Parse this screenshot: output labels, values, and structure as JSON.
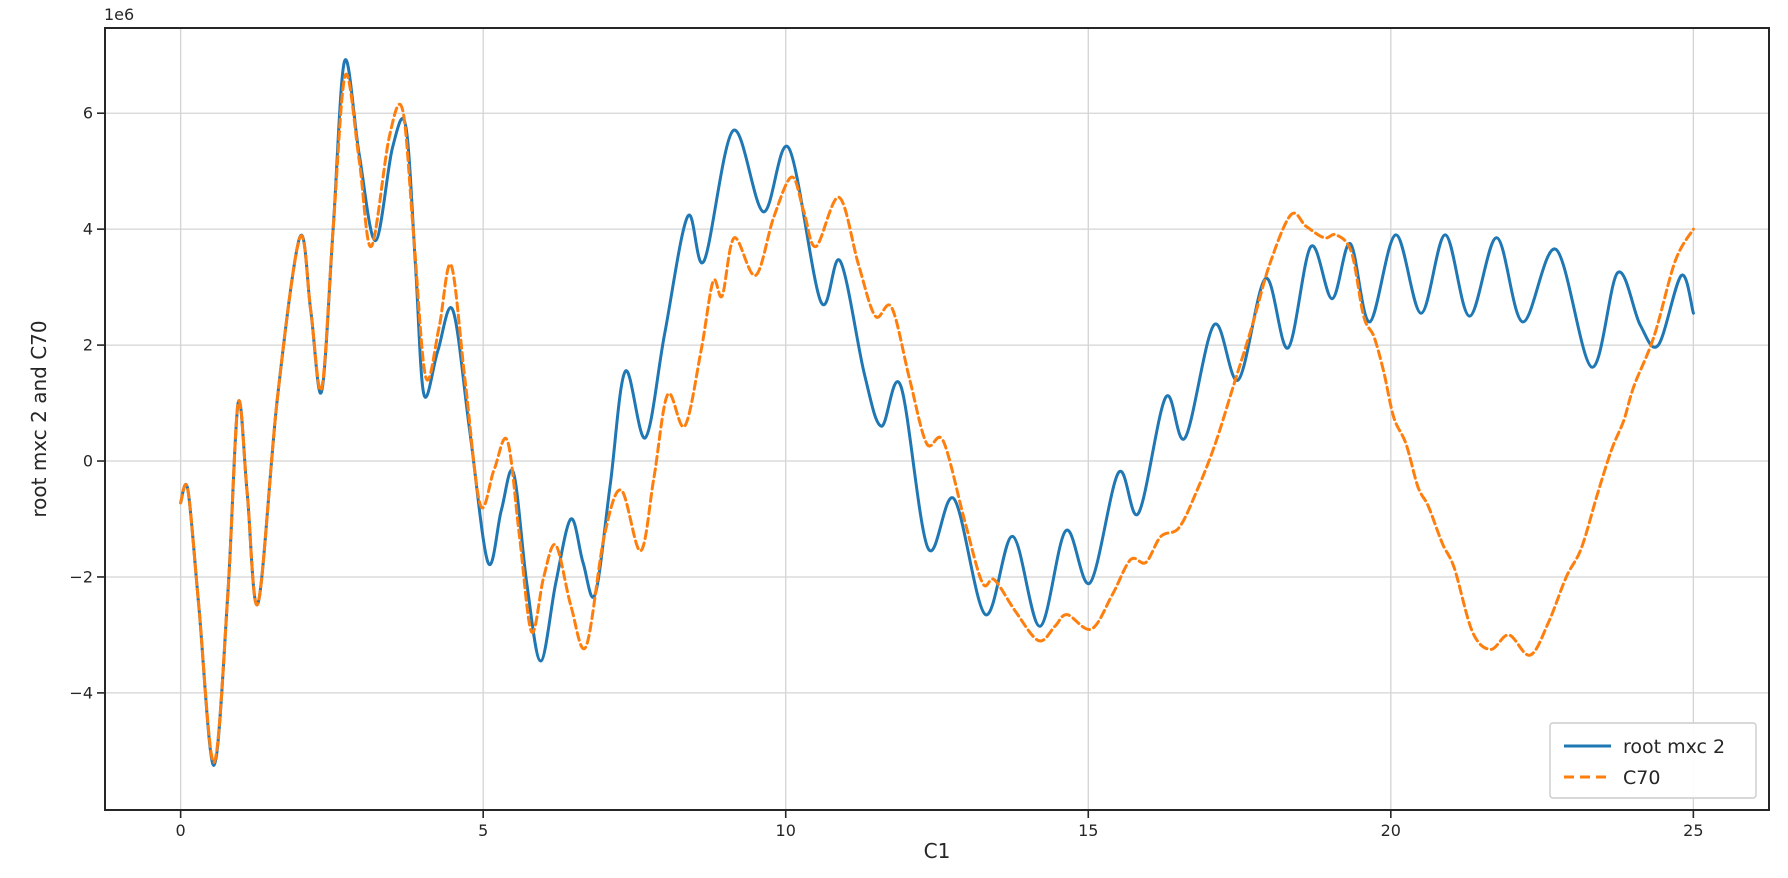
{
  "chart": {
    "offset_text": "1e6",
    "xlabel": "C1",
    "ylabel": "root mxc 2 and C70",
    "background_color": "#ffffff",
    "grid_color": "#d4d4d4",
    "spine_color": "#262626",
    "text_color": "#262626",
    "legend_border_color": "#cccccc"
  },
  "chart_data": {
    "type": "line",
    "title": "",
    "xlabel": "C1",
    "ylabel": "root mxc 2 and C70",
    "y_unit_multiplier": "1e6",
    "xlim": [
      -1.25,
      26.25
    ],
    "ylim_1e6": [
      -6.02,
      7.47
    ],
    "xticks": [
      0,
      5,
      10,
      15,
      20,
      25
    ],
    "xticklabels": [
      "0",
      "5",
      "10",
      "15",
      "20",
      "25"
    ],
    "yticks_1e6": [
      6,
      4,
      2,
      0,
      -2,
      -4
    ],
    "yticklabels": [
      "6",
      "4",
      "2",
      "0",
      "−2",
      "−4"
    ],
    "grid": true,
    "legend_position": "lower right",
    "series": [
      {
        "name": "root mxc 2",
        "color": "#1f77b4",
        "style": "solid",
        "points_1e6": [
          [
            0,
            -0.72
          ],
          [
            0.12,
            -0.5
          ],
          [
            0.3,
            -2.5
          ],
          [
            0.55,
            -5.25
          ],
          [
            0.78,
            -2.3
          ],
          [
            0.95,
            1.0
          ],
          [
            1.1,
            -0.55
          ],
          [
            1.28,
            -2.45
          ],
          [
            1.6,
            1.1
          ],
          [
            1.97,
            3.86
          ],
          [
            2.15,
            2.6
          ],
          [
            2.33,
            1.2
          ],
          [
            2.52,
            4.0
          ],
          [
            2.71,
            6.9
          ],
          [
            2.95,
            5.3
          ],
          [
            3.22,
            3.8
          ],
          [
            3.5,
            5.4
          ],
          [
            3.72,
            5.78
          ],
          [
            3.88,
            3.4
          ],
          [
            4.02,
            1.15
          ],
          [
            4.25,
            1.9
          ],
          [
            4.5,
            2.6
          ],
          [
            4.78,
            0.5
          ],
          [
            5.08,
            -1.75
          ],
          [
            5.3,
            -0.85
          ],
          [
            5.5,
            -0.2
          ],
          [
            5.72,
            -2.1
          ],
          [
            5.95,
            -3.45
          ],
          [
            6.2,
            -2.1
          ],
          [
            6.45,
            -1.0
          ],
          [
            6.65,
            -1.75
          ],
          [
            6.85,
            -2.3
          ],
          [
            7.1,
            -0.4
          ],
          [
            7.35,
            1.55
          ],
          [
            7.68,
            0.4
          ],
          [
            8.0,
            2.2
          ],
          [
            8.38,
            4.22
          ],
          [
            8.65,
            3.45
          ],
          [
            9.13,
            5.7
          ],
          [
            9.63,
            4.3
          ],
          [
            10.05,
            5.4
          ],
          [
            10.58,
            2.75
          ],
          [
            10.9,
            3.45
          ],
          [
            11.3,
            1.5
          ],
          [
            11.58,
            0.6
          ],
          [
            11.9,
            1.3
          ],
          [
            12.35,
            -1.5
          ],
          [
            12.78,
            -0.65
          ],
          [
            13.3,
            -2.65
          ],
          [
            13.75,
            -1.3
          ],
          [
            14.2,
            -2.85
          ],
          [
            14.63,
            -1.2
          ],
          [
            15.03,
            -2.1
          ],
          [
            15.5,
            -0.2
          ],
          [
            15.83,
            -0.9
          ],
          [
            16.28,
            1.1
          ],
          [
            16.6,
            0.4
          ],
          [
            17.08,
            2.35
          ],
          [
            17.48,
            1.4
          ],
          [
            17.93,
            3.15
          ],
          [
            18.3,
            1.95
          ],
          [
            18.68,
            3.7
          ],
          [
            19.03,
            2.8
          ],
          [
            19.33,
            3.75
          ],
          [
            19.65,
            2.4
          ],
          [
            20.08,
            3.9
          ],
          [
            20.5,
            2.55
          ],
          [
            20.9,
            3.9
          ],
          [
            21.3,
            2.5
          ],
          [
            21.75,
            3.85
          ],
          [
            22.18,
            2.4
          ],
          [
            22.73,
            3.65
          ],
          [
            23.32,
            1.62
          ],
          [
            23.75,
            3.25
          ],
          [
            24.12,
            2.35
          ],
          [
            24.42,
            2.0
          ],
          [
            24.8,
            3.2
          ],
          [
            25,
            2.55
          ]
        ]
      },
      {
        "name": "C70",
        "color": "#ff7f0e",
        "style": "dashed",
        "points_1e6": [
          [
            0,
            -0.72
          ],
          [
            0.12,
            -0.5
          ],
          [
            0.3,
            -2.5
          ],
          [
            0.55,
            -5.2
          ],
          [
            0.78,
            -2.3
          ],
          [
            0.95,
            1.0
          ],
          [
            1.1,
            -0.55
          ],
          [
            1.28,
            -2.45
          ],
          [
            1.6,
            1.1
          ],
          [
            1.97,
            3.85
          ],
          [
            2.15,
            2.6
          ],
          [
            2.33,
            1.25
          ],
          [
            2.52,
            4.0
          ],
          [
            2.72,
            6.65
          ],
          [
            2.95,
            5.2
          ],
          [
            3.15,
            3.7
          ],
          [
            3.45,
            5.6
          ],
          [
            3.67,
            6.05
          ],
          [
            3.85,
            3.9
          ],
          [
            4.05,
            1.45
          ],
          [
            4.27,
            2.3
          ],
          [
            4.47,
            3.38
          ],
          [
            4.7,
            1.4
          ],
          [
            4.95,
            -0.75
          ],
          [
            5.18,
            -0.15
          ],
          [
            5.4,
            0.35
          ],
          [
            5.6,
            -1.3
          ],
          [
            5.8,
            -2.95
          ],
          [
            6.0,
            -2.0
          ],
          [
            6.2,
            -1.45
          ],
          [
            6.45,
            -2.5
          ],
          [
            6.7,
            -3.2
          ],
          [
            7.0,
            -1.3
          ],
          [
            7.28,
            -0.5
          ],
          [
            7.6,
            -1.55
          ],
          [
            7.82,
            -0.3
          ],
          [
            8.05,
            1.15
          ],
          [
            8.33,
            0.6
          ],
          [
            8.6,
            1.9
          ],
          [
            8.8,
            3.1
          ],
          [
            8.95,
            2.85
          ],
          [
            9.15,
            3.85
          ],
          [
            9.5,
            3.2
          ],
          [
            9.8,
            4.2
          ],
          [
            10.1,
            4.9
          ],
          [
            10.3,
            4.3
          ],
          [
            10.5,
            3.7
          ],
          [
            10.88,
            4.55
          ],
          [
            11.2,
            3.4
          ],
          [
            11.48,
            2.5
          ],
          [
            11.75,
            2.65
          ],
          [
            12.05,
            1.4
          ],
          [
            12.33,
            0.3
          ],
          [
            12.6,
            0.35
          ],
          [
            12.95,
            -1.0
          ],
          [
            13.25,
            -2.1
          ],
          [
            13.45,
            -2.05
          ],
          [
            13.8,
            -2.6
          ],
          [
            14.18,
            -3.1
          ],
          [
            14.45,
            -2.85
          ],
          [
            14.65,
            -2.65
          ],
          [
            15.05,
            -2.9
          ],
          [
            15.4,
            -2.3
          ],
          [
            15.7,
            -1.7
          ],
          [
            15.95,
            -1.75
          ],
          [
            16.2,
            -1.3
          ],
          [
            16.5,
            -1.15
          ],
          [
            16.8,
            -0.5
          ],
          [
            17.1,
            0.3
          ],
          [
            17.4,
            1.3
          ],
          [
            17.7,
            2.3
          ],
          [
            18.0,
            3.4
          ],
          [
            18.35,
            4.25
          ],
          [
            18.6,
            4.05
          ],
          [
            18.9,
            3.85
          ],
          [
            19.1,
            3.9
          ],
          [
            19.35,
            3.6
          ],
          [
            19.55,
            2.5
          ],
          [
            19.72,
            2.15
          ],
          [
            19.88,
            1.55
          ],
          [
            20.05,
            0.75
          ],
          [
            20.25,
            0.3
          ],
          [
            20.45,
            -0.45
          ],
          [
            20.62,
            -0.78
          ],
          [
            20.85,
            -1.42
          ],
          [
            21.05,
            -1.85
          ],
          [
            21.35,
            -2.95
          ],
          [
            21.65,
            -3.25
          ],
          [
            21.95,
            -3.0
          ],
          [
            22.3,
            -3.35
          ],
          [
            22.6,
            -2.8
          ],
          [
            22.9,
            -2.0
          ],
          [
            23.15,
            -1.5
          ],
          [
            23.42,
            -0.55
          ],
          [
            23.65,
            0.2
          ],
          [
            23.85,
            0.7
          ],
          [
            24.02,
            1.3
          ],
          [
            24.35,
            2.15
          ],
          [
            24.7,
            3.45
          ],
          [
            25,
            4.0
          ]
        ]
      }
    ]
  }
}
